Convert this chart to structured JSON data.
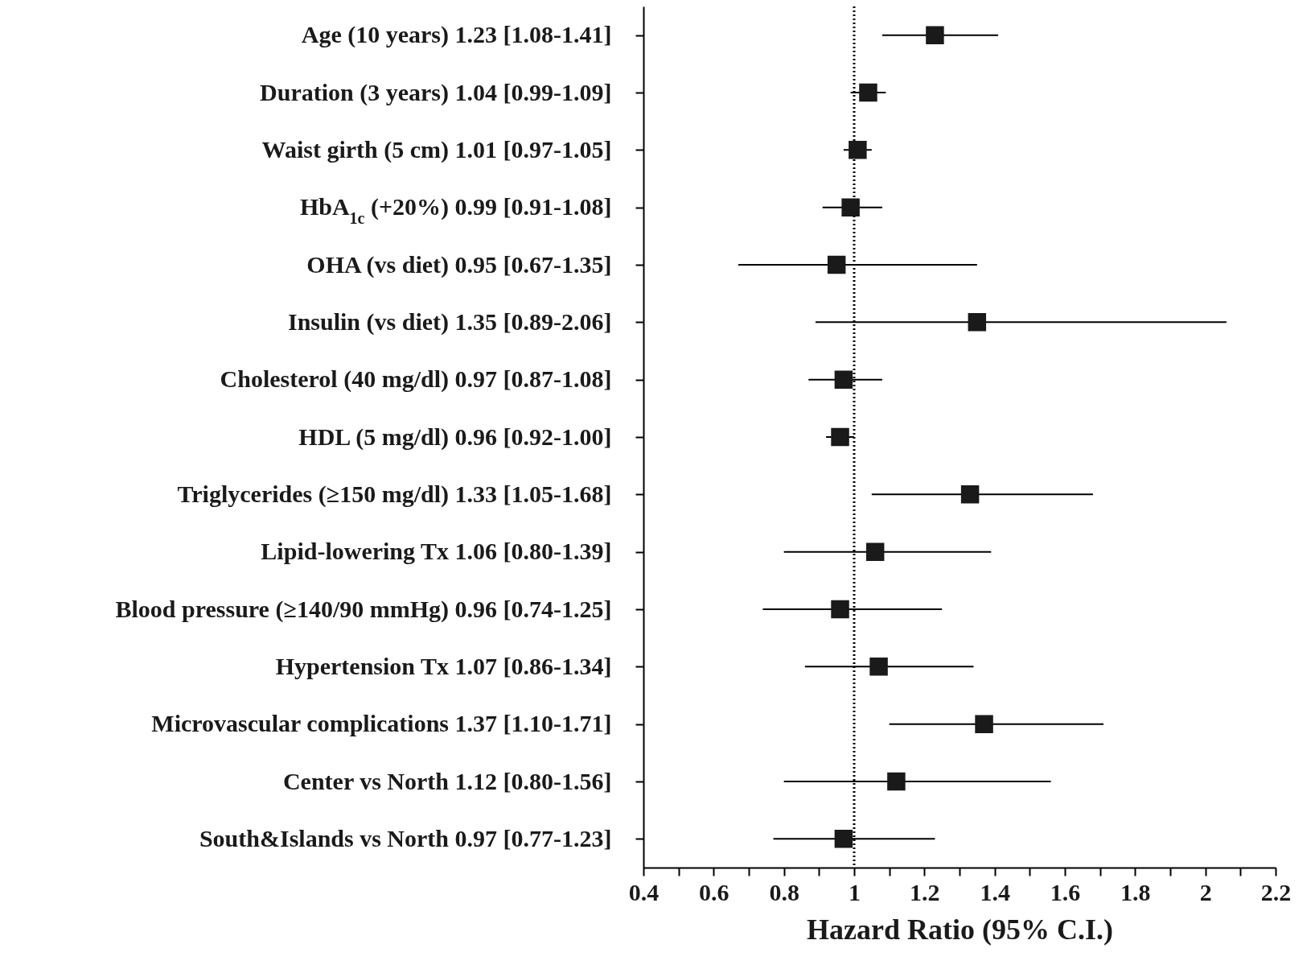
{
  "chart_data": {
    "type": "scatter",
    "orientation": "horizontal",
    "marker": "square",
    "color": "#1a1a1a",
    "xlabel": "Hazard Ratio (95% C.I.)",
    "categories": [
      "Age (10 years) 1.23 [1.08-1.41]",
      "Duration (3 years) 1.04 [0.99-1.09]",
      "Waist girth (5 cm) 1.01 [0.97-1.05]",
      "HbA$_{1c}$ (+20%) 0.99 [0.91-1.08]",
      "OHA (vs diet) 0.95 [0.67-1.35]",
      "Insulin (vs diet) 1.35 [0.89-2.06]",
      "Cholesterol (40 mg/dl) 0.97 [0.87-1.08]",
      "HDL (5 mg/dl) 0.96 [0.92-1.00]",
      "Triglycerides (≥150 mg/dl) 1.33 [1.05-1.68]",
      "Lipid-lowering Tx 1.06 [0.80-1.39]",
      "Blood pressure (≥140/90 mmHg) 0.96 [0.74-1.25]",
      "Hypertension Tx 1.07 [0.86-1.34]",
      "Microvascular complications 1.37 [1.10-1.71]",
      "Center vs North 1.12 [0.80-1.56]",
      "South&Islands vs North 0.97 [0.77-1.23]"
    ],
    "values": [
      1.23,
      1.04,
      1.01,
      0.99,
      0.95,
      1.35,
      0.97,
      0.96,
      1.33,
      1.06,
      0.96,
      1.07,
      1.37,
      1.12,
      0.97
    ],
    "errors": [
      [
        1.08,
        1.41
      ],
      [
        0.99,
        1.09
      ],
      [
        0.97,
        1.05
      ],
      [
        0.91,
        1.08
      ],
      [
        0.67,
        1.35
      ],
      [
        0.89,
        2.06
      ],
      [
        0.87,
        1.08
      ],
      [
        0.92,
        1.0
      ],
      [
        1.05,
        1.68
      ],
      [
        0.8,
        1.39
      ],
      [
        0.74,
        1.25
      ],
      [
        0.86,
        1.34
      ],
      [
        1.1,
        1.71
      ],
      [
        0.8,
        1.56
      ],
      [
        0.77,
        1.23
      ]
    ],
    "xlim": [
      0.4,
      2.2
    ],
    "xticks": [
      0.4,
      {
        "value": 0.5,
        "label": null
      },
      0.6,
      {
        "value": 0.7,
        "label": null
      },
      0.8,
      {
        "value": 0.9,
        "label": null
      },
      1,
      {
        "value": 1.1,
        "label": null
      },
      1.2,
      {
        "value": 1.3,
        "label": null
      },
      1.4,
      {
        "value": 1.5,
        "label": null
      },
      1.6,
      {
        "value": 1.7,
        "label": null
      },
      1.8,
      {
        "value": 1.9,
        "label": null
      },
      2,
      {
        "value": 2.1,
        "label": null
      },
      2.2
    ],
    "ref_lines": [
      {
        "axis": "x",
        "value": 1,
        "line_style": "dotted"
      }
    ]
  }
}
